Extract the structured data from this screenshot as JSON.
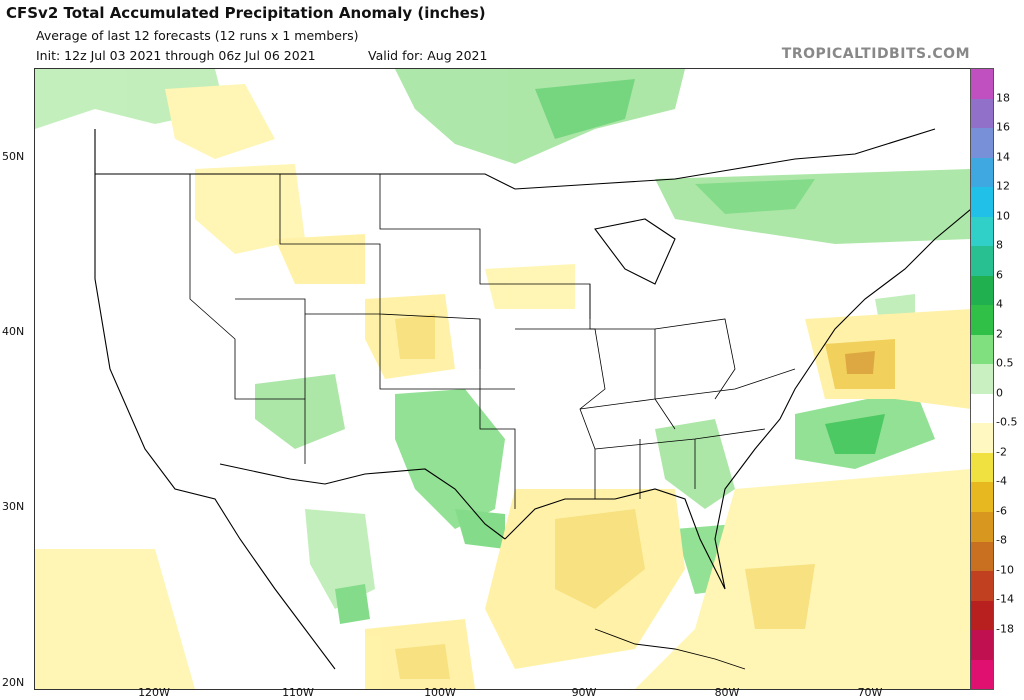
{
  "header": {
    "title": "CFSv2 Total Accumulated Precipitation Anomaly (inches)",
    "subtitle": "Average of last 12 forecasts (12 runs x 1 members)",
    "init": "Init: 12z Jul 03 2021 through 06z Jul 06 2021",
    "valid": "Valid for: Aug 2021",
    "brand": "TROPICALTIDBITS.COM"
  },
  "axes": {
    "lat_labels": [
      "50N",
      "40N",
      "30N",
      "20N"
    ],
    "lon_labels": [
      "120W",
      "110W",
      "100W",
      "90W",
      "80W",
      "70W"
    ]
  },
  "colorbar": {
    "labels": [
      "18",
      "16",
      "14",
      "12",
      "10",
      "8",
      "6",
      "4",
      "2",
      "0.5",
      "0",
      "-0.5",
      "-2",
      "-4",
      "-6",
      "-8",
      "-10",
      "-14",
      "-18"
    ],
    "colors": [
      "#c050c0",
      "#9070c8",
      "#7890d8",
      "#40a8e0",
      "#20c0e8",
      "#30d0c8",
      "#28c090",
      "#20b050",
      "#30c048",
      "#80e080",
      "#c8f0c0",
      "#ffffff",
      "#fff8c0",
      "#f0e040",
      "#e8b820",
      "#d89820",
      "#c87020",
      "#c04020",
      "#b82020",
      "#c01050",
      "#e01070"
    ]
  }
}
